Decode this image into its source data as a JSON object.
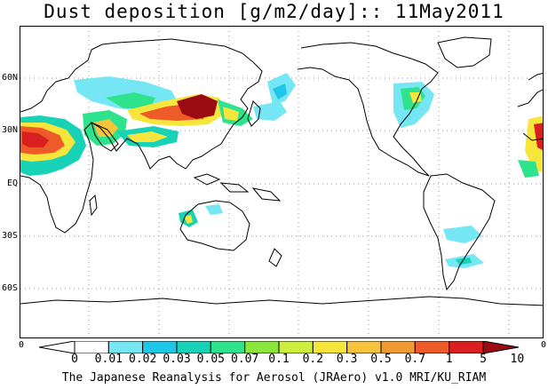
{
  "title": "Dust deposition [g/m2/day]:: 11May2011",
  "lat_labels": [
    "60N",
    "30N",
    "EQ",
    "30S",
    "60S"
  ],
  "lon_edge_labels": [
    "0",
    "0"
  ],
  "colorbar": {
    "labels": [
      "0",
      "0.01",
      "0.02",
      "0.03",
      "0.05",
      "0.07",
      "0.1",
      "0.2",
      "0.3",
      "0.5",
      "0.7",
      "1",
      "5",
      "10"
    ],
    "colors": [
      "#ffffff",
      "#ffffff",
      "#74e6f4",
      "#1fc7e6",
      "#17d2b7",
      "#2fe38c",
      "#8ae63a",
      "#cdee3d",
      "#f6e63c",
      "#f7c33d",
      "#f29a32",
      "#ee5a28",
      "#d91f1f",
      "#9c0b14"
    ]
  },
  "footer": "The Japanese Reanalysis for Aerosol (JRAero) v1.0 MRI/KU_RIAM"
}
